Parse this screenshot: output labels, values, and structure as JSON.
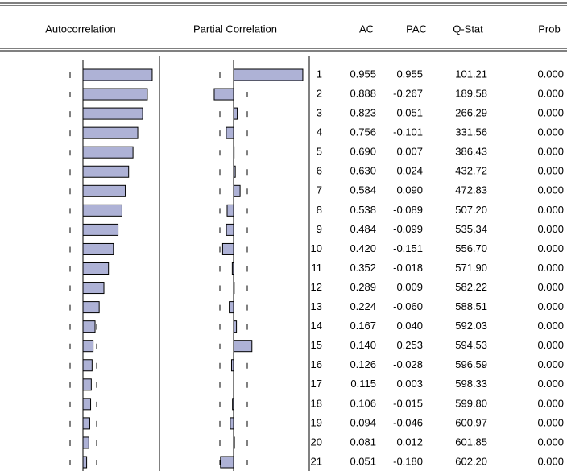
{
  "table": {
    "header": [
      "Autocorrelation",
      "Partial Correlation",
      "AC",
      "PAC",
      "Q-Stat",
      "Prob"
    ],
    "rows": [
      [
        "1",
        "0.955",
        "0.955",
        "101.21",
        "0.000"
      ],
      [
        "2",
        "0.888",
        "-0.267",
        "189.58",
        "0.000"
      ],
      [
        "3",
        "0.823",
        "0.051",
        "266.29",
        "0.000"
      ],
      [
        "4",
        "0.756",
        "-0.101",
        "331.56",
        "0.000"
      ],
      [
        "5",
        "0.690",
        "0.007",
        "386.43",
        "0.000"
      ],
      [
        "6",
        "0.630",
        "0.024",
        "432.72",
        "0.000"
      ],
      [
        "7",
        "0.584",
        "0.090",
        "472.83",
        "0.000"
      ],
      [
        "8",
        "0.538",
        "-0.089",
        "507.20",
        "0.000"
      ],
      [
        "9",
        "0.484",
        "-0.099",
        "535.34",
        "0.000"
      ],
      [
        "10",
        "0.420",
        "-0.151",
        "556.70",
        "0.000"
      ],
      [
        "11",
        "0.352",
        "-0.018",
        "571.90",
        "0.000"
      ],
      [
        "12",
        "0.289",
        "0.009",
        "582.22",
        "0.000"
      ],
      [
        "13",
        "0.224",
        "-0.060",
        "588.51",
        "0.000"
      ],
      [
        "14",
        "0.167",
        "0.040",
        "592.03",
        "0.000"
      ],
      [
        "15",
        "0.140",
        "0.253",
        "594.53",
        "0.000"
      ],
      [
        "16",
        "0.126",
        "-0.028",
        "596.59",
        "0.000"
      ],
      [
        "17",
        "0.115",
        "0.003",
        "598.33",
        "0.000"
      ],
      [
        "18",
        "0.106",
        "-0.015",
        "599.80",
        "0.000"
      ],
      [
        "19",
        "0.094",
        "-0.046",
        "600.97",
        "0.000"
      ],
      [
        "20",
        "0.081",
        "0.012",
        "601.85",
        "0.000"
      ],
      [
        "21",
        "0.051",
        "-0.180",
        "602.20",
        "0.000"
      ]
    ]
  }
}
